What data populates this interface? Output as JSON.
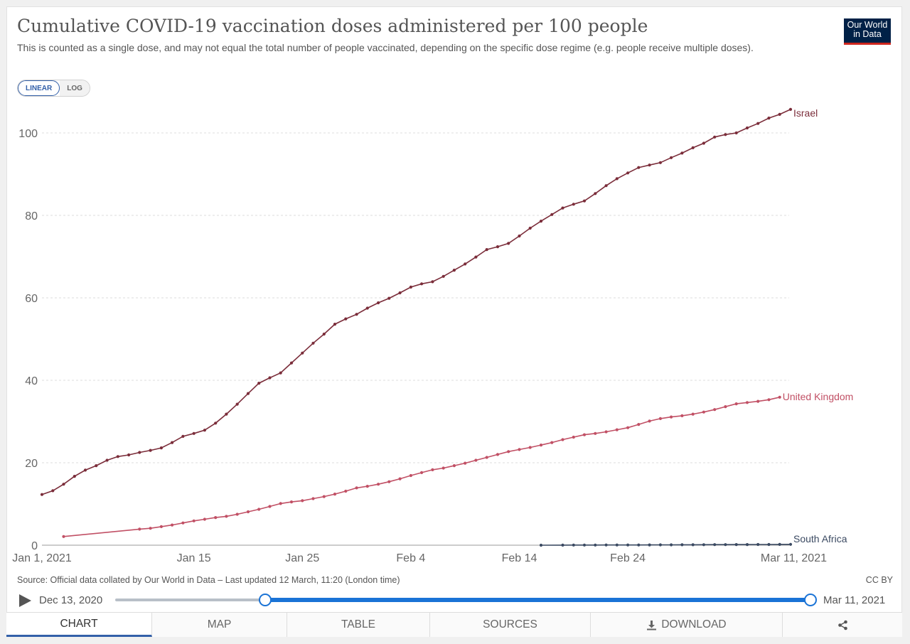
{
  "header": {
    "title": "Cumulative COVID-19 vaccination doses administered per 100 people",
    "subtitle": "This is counted as a single dose, and may not equal the total number of people vaccinated, depending on the specific dose regime (e.g. people receive multiple doses).",
    "logo_line1": "Our World",
    "logo_line2": "in Data",
    "logo_color": "#002147",
    "logo_accent": "#ce261e"
  },
  "scale_toggle": {
    "linear_label": "LINEAR",
    "log_label": "LOG",
    "selected": "LINEAR"
  },
  "chart_data": {
    "type": "line",
    "title": "Cumulative COVID-19 vaccination doses administered per 100 people",
    "xlabel": "",
    "ylabel": "",
    "ylim": [
      0,
      105
    ],
    "xlim": [
      "2021-01-01",
      "2021-03-11"
    ],
    "x_ticks": [
      {
        "date": "2021-01-01",
        "label": "Jan 1, 2021"
      },
      {
        "date": "2021-01-15",
        "label": "Jan 15"
      },
      {
        "date": "2021-01-25",
        "label": "Jan 25"
      },
      {
        "date": "2021-02-04",
        "label": "Feb 4"
      },
      {
        "date": "2021-02-14",
        "label": "Feb 14"
      },
      {
        "date": "2021-02-24",
        "label": "Feb 24"
      },
      {
        "date": "2021-03-11",
        "label": "Mar 11, 2021"
      }
    ],
    "y_ticks": [
      0,
      20,
      40,
      60,
      80,
      100
    ],
    "grid": true,
    "legend": "end-of-line labels",
    "series": [
      {
        "name": "Israel",
        "color": "#7b2d3a",
        "points": [
          [
            "2021-01-01",
            12.3
          ],
          [
            "2021-01-02",
            13.2
          ],
          [
            "2021-01-03",
            14.8
          ],
          [
            "2021-01-04",
            16.7
          ],
          [
            "2021-01-05",
            18.2
          ],
          [
            "2021-01-06",
            19.3
          ],
          [
            "2021-01-07",
            20.6
          ],
          [
            "2021-01-08",
            21.5
          ],
          [
            "2021-01-09",
            21.9
          ],
          [
            "2021-01-10",
            22.5
          ],
          [
            "2021-01-11",
            23.0
          ],
          [
            "2021-01-12",
            23.6
          ],
          [
            "2021-01-13",
            24.9
          ],
          [
            "2021-01-14",
            26.4
          ],
          [
            "2021-01-15",
            27.1
          ],
          [
            "2021-01-16",
            27.9
          ],
          [
            "2021-01-17",
            29.6
          ],
          [
            "2021-01-18",
            31.8
          ],
          [
            "2021-01-19",
            34.2
          ],
          [
            "2021-01-20",
            36.8
          ],
          [
            "2021-01-21",
            39.3
          ],
          [
            "2021-01-22",
            40.6
          ],
          [
            "2021-01-23",
            41.8
          ],
          [
            "2021-01-24",
            44.2
          ],
          [
            "2021-01-25",
            46.6
          ],
          [
            "2021-01-26",
            49.0
          ],
          [
            "2021-01-27",
            51.2
          ],
          [
            "2021-01-28",
            53.6
          ],
          [
            "2021-01-29",
            54.9
          ],
          [
            "2021-01-30",
            56.0
          ],
          [
            "2021-01-31",
            57.5
          ],
          [
            "2021-02-01",
            58.8
          ],
          [
            "2021-02-02",
            59.9
          ],
          [
            "2021-02-03",
            61.2
          ],
          [
            "2021-02-04",
            62.6
          ],
          [
            "2021-02-05",
            63.4
          ],
          [
            "2021-02-06",
            63.9
          ],
          [
            "2021-02-07",
            65.2
          ],
          [
            "2021-02-08",
            66.7
          ],
          [
            "2021-02-09",
            68.2
          ],
          [
            "2021-02-10",
            69.9
          ],
          [
            "2021-02-11",
            71.7
          ],
          [
            "2021-02-12",
            72.4
          ],
          [
            "2021-02-13",
            73.2
          ],
          [
            "2021-02-14",
            75.0
          ],
          [
            "2021-02-15",
            76.9
          ],
          [
            "2021-02-16",
            78.6
          ],
          [
            "2021-02-17",
            80.2
          ],
          [
            "2021-02-18",
            81.8
          ],
          [
            "2021-02-19",
            82.7
          ],
          [
            "2021-02-20",
            83.5
          ],
          [
            "2021-02-21",
            85.3
          ],
          [
            "2021-02-22",
            87.2
          ],
          [
            "2021-02-23",
            88.9
          ],
          [
            "2021-02-24",
            90.3
          ],
          [
            "2021-02-25",
            91.6
          ],
          [
            "2021-02-26",
            92.2
          ],
          [
            "2021-02-27",
            92.8
          ],
          [
            "2021-02-28",
            94.0
          ],
          [
            "2021-03-01",
            95.1
          ],
          [
            "2021-03-02",
            96.4
          ],
          [
            "2021-03-03",
            97.5
          ],
          [
            "2021-03-04",
            99.0
          ],
          [
            "2021-03-05",
            99.6
          ],
          [
            "2021-03-06",
            100.0
          ],
          [
            "2021-03-07",
            101.2
          ],
          [
            "2021-03-08",
            102.3
          ],
          [
            "2021-03-09",
            103.6
          ],
          [
            "2021-03-10",
            104.5
          ],
          [
            "2021-03-11",
            105.7
          ]
        ]
      },
      {
        "name": "United Kingdom",
        "color": "#c15065",
        "points": [
          [
            "2021-01-03",
            2.1
          ],
          [
            "2021-01-10",
            3.9
          ],
          [
            "2021-01-11",
            4.1
          ],
          [
            "2021-01-12",
            4.5
          ],
          [
            "2021-01-13",
            4.9
          ],
          [
            "2021-01-14",
            5.4
          ],
          [
            "2021-01-15",
            5.9
          ],
          [
            "2021-01-16",
            6.3
          ],
          [
            "2021-01-17",
            6.7
          ],
          [
            "2021-01-18",
            7.0
          ],
          [
            "2021-01-19",
            7.5
          ],
          [
            "2021-01-20",
            8.1
          ],
          [
            "2021-01-21",
            8.7
          ],
          [
            "2021-01-22",
            9.4
          ],
          [
            "2021-01-23",
            10.1
          ],
          [
            "2021-01-24",
            10.5
          ],
          [
            "2021-01-25",
            10.8
          ],
          [
            "2021-01-26",
            11.3
          ],
          [
            "2021-01-27",
            11.8
          ],
          [
            "2021-01-28",
            12.4
          ],
          [
            "2021-01-29",
            13.1
          ],
          [
            "2021-01-30",
            13.9
          ],
          [
            "2021-01-31",
            14.3
          ],
          [
            "2021-02-01",
            14.8
          ],
          [
            "2021-02-02",
            15.4
          ],
          [
            "2021-02-03",
            16.1
          ],
          [
            "2021-02-04",
            16.9
          ],
          [
            "2021-02-05",
            17.6
          ],
          [
            "2021-02-06",
            18.3
          ],
          [
            "2021-02-07",
            18.7
          ],
          [
            "2021-02-08",
            19.3
          ],
          [
            "2021-02-09",
            19.9
          ],
          [
            "2021-02-10",
            20.6
          ],
          [
            "2021-02-11",
            21.3
          ],
          [
            "2021-02-12",
            22.0
          ],
          [
            "2021-02-13",
            22.7
          ],
          [
            "2021-02-14",
            23.2
          ],
          [
            "2021-02-15",
            23.7
          ],
          [
            "2021-02-16",
            24.3
          ],
          [
            "2021-02-17",
            24.9
          ],
          [
            "2021-02-18",
            25.6
          ],
          [
            "2021-02-19",
            26.2
          ],
          [
            "2021-02-20",
            26.8
          ],
          [
            "2021-02-21",
            27.1
          ],
          [
            "2021-02-22",
            27.5
          ],
          [
            "2021-02-23",
            28.0
          ],
          [
            "2021-02-24",
            28.5
          ],
          [
            "2021-02-25",
            29.3
          ],
          [
            "2021-02-26",
            30.1
          ],
          [
            "2021-02-27",
            30.7
          ],
          [
            "2021-02-28",
            31.1
          ],
          [
            "2021-03-01",
            31.4
          ],
          [
            "2021-03-02",
            31.8
          ],
          [
            "2021-03-03",
            32.3
          ],
          [
            "2021-03-04",
            32.9
          ],
          [
            "2021-03-05",
            33.6
          ],
          [
            "2021-03-06",
            34.3
          ],
          [
            "2021-03-07",
            34.6
          ],
          [
            "2021-03-08",
            34.9
          ],
          [
            "2021-03-09",
            35.3
          ],
          [
            "2021-03-10",
            35.9
          ]
        ]
      },
      {
        "name": "South Africa",
        "color": "#3b4a62",
        "points": [
          [
            "2021-02-16",
            0.0
          ],
          [
            "2021-02-18",
            0.02
          ],
          [
            "2021-02-19",
            0.03
          ],
          [
            "2021-02-20",
            0.03
          ],
          [
            "2021-02-21",
            0.04
          ],
          [
            "2021-02-22",
            0.05
          ],
          [
            "2021-02-23",
            0.05
          ],
          [
            "2021-02-24",
            0.06
          ],
          [
            "2021-02-25",
            0.06
          ],
          [
            "2021-02-26",
            0.07
          ],
          [
            "2021-02-27",
            0.08
          ],
          [
            "2021-02-28",
            0.09
          ],
          [
            "2021-03-01",
            0.1
          ],
          [
            "2021-03-02",
            0.11
          ],
          [
            "2021-03-03",
            0.12
          ],
          [
            "2021-03-04",
            0.13
          ],
          [
            "2021-03-05",
            0.14
          ],
          [
            "2021-03-06",
            0.15
          ],
          [
            "2021-03-07",
            0.16
          ],
          [
            "2021-03-08",
            0.17
          ],
          [
            "2021-03-09",
            0.18
          ],
          [
            "2021-03-10",
            0.19
          ],
          [
            "2021-03-11",
            0.2
          ]
        ]
      }
    ]
  },
  "footer": {
    "source": "Source: Official data collated by Our World in Data – Last updated 12 March, 11:20 (London time)",
    "license": "CC BY"
  },
  "timeline": {
    "start_date": "Dec 13, 2020",
    "end_date": "Mar 11, 2021",
    "range_start": "2021-01-01",
    "range_end": "2021-03-11"
  },
  "tabs": [
    {
      "label": "CHART",
      "active": true
    },
    {
      "label": "MAP",
      "active": false
    },
    {
      "label": "TABLE",
      "active": false
    },
    {
      "label": "SOURCES",
      "active": false
    },
    {
      "label": "DOWNLOAD",
      "active": false
    },
    {
      "label": "",
      "active": false
    }
  ]
}
